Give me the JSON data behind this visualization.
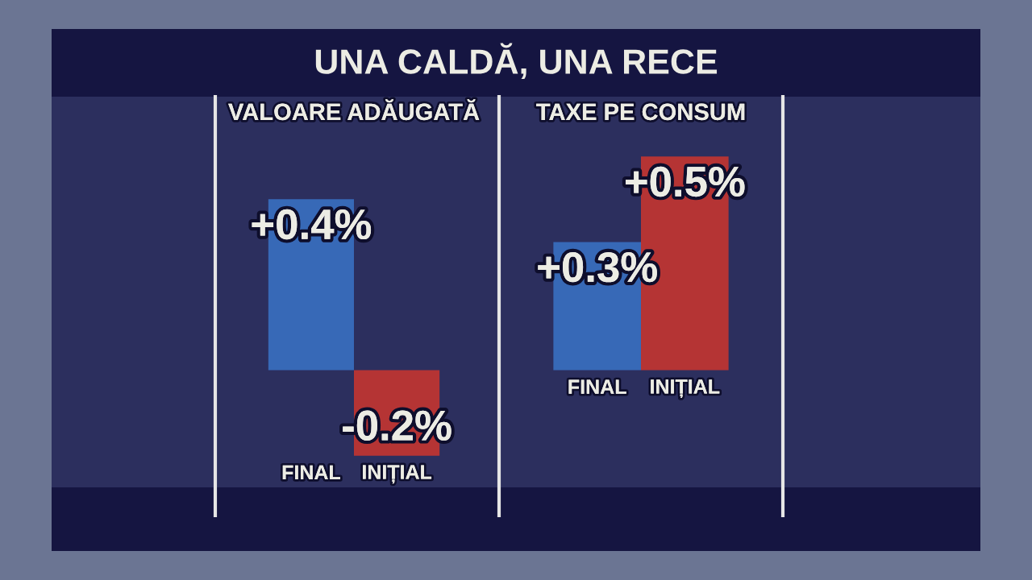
{
  "chart_data": [
    {
      "type": "bar",
      "title": "UNA CALDĂ, UNA RECE",
      "subtitle": "VALOARE ADĂUGATĂ",
      "categories": [
        "FINAL",
        "INIȚIAL"
      ],
      "values": [
        0.4,
        -0.2
      ],
      "colors": [
        "#3769b7",
        "#b53434"
      ],
      "value_labels": [
        "+0.4%",
        "-0.2%"
      ],
      "tick_labels": "x"
    },
    {
      "type": "bar",
      "subtitle": "TAXE PE CONSUM",
      "categories": [
        "FINAL",
        "INIȚIAL"
      ],
      "values": [
        0.3,
        0.5
      ],
      "colors": [
        "#3769b7",
        "#b53434"
      ],
      "value_labels": [
        "+0.3%",
        "+0.5%"
      ],
      "tick_labels": "x"
    }
  ]
}
